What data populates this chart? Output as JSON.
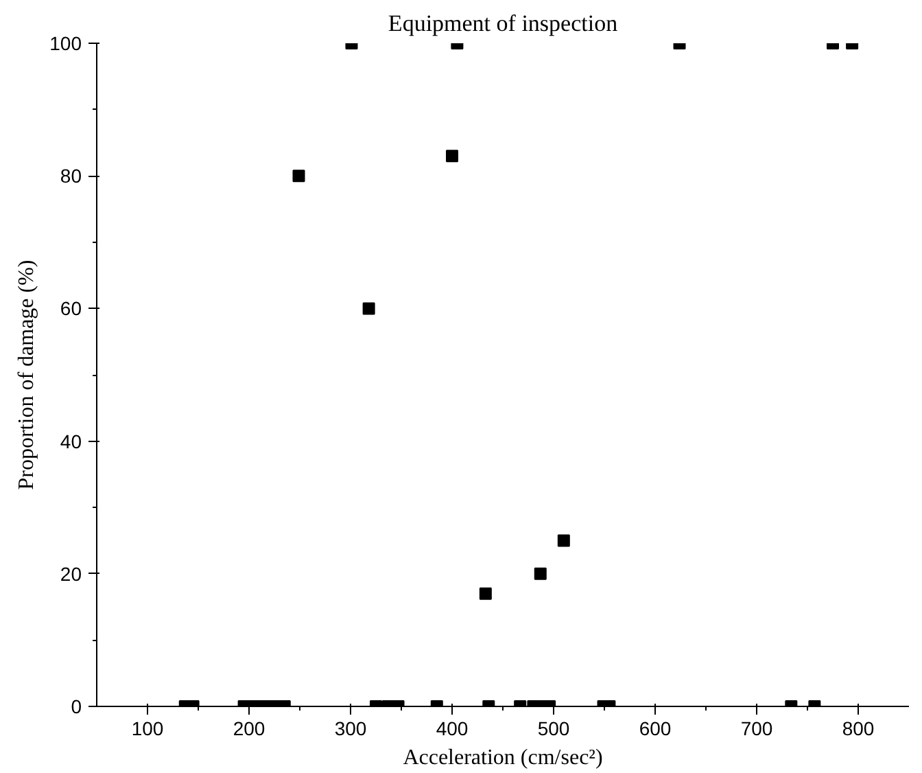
{
  "chart_data": {
    "type": "scatter",
    "title": "Equipment of inspection",
    "xlabel": "Acceleration (cm/sec²)",
    "ylabel": "Proportion of damage (%)",
    "x": [
      137,
      145,
      195,
      205,
      215,
      225,
      235,
      325,
      337,
      347,
      385,
      436,
      467,
      480,
      488,
      496,
      549,
      555,
      734,
      757,
      249,
      318,
      400,
      433,
      487,
      510,
      301,
      405,
      624,
      775,
      794
    ],
    "series": [
      {
        "color": "#000000",
        "values": [
          0,
          0,
          0,
          0,
          0,
          0,
          0,
          0,
          0,
          0,
          0,
          0,
          0,
          0,
          0,
          0,
          0,
          0,
          0,
          0,
          80,
          60,
          83,
          17,
          20,
          25,
          100,
          100,
          100,
          100,
          100
        ]
      }
    ],
    "xlim": [
      50,
      850
    ],
    "ylim": [
      0,
      100
    ],
    "xticks": [
      100,
      200,
      300,
      400,
      500,
      600,
      700,
      800
    ],
    "yticks": [
      0,
      20,
      40,
      60,
      80,
      100
    ],
    "marker": "square",
    "grid": false
  }
}
